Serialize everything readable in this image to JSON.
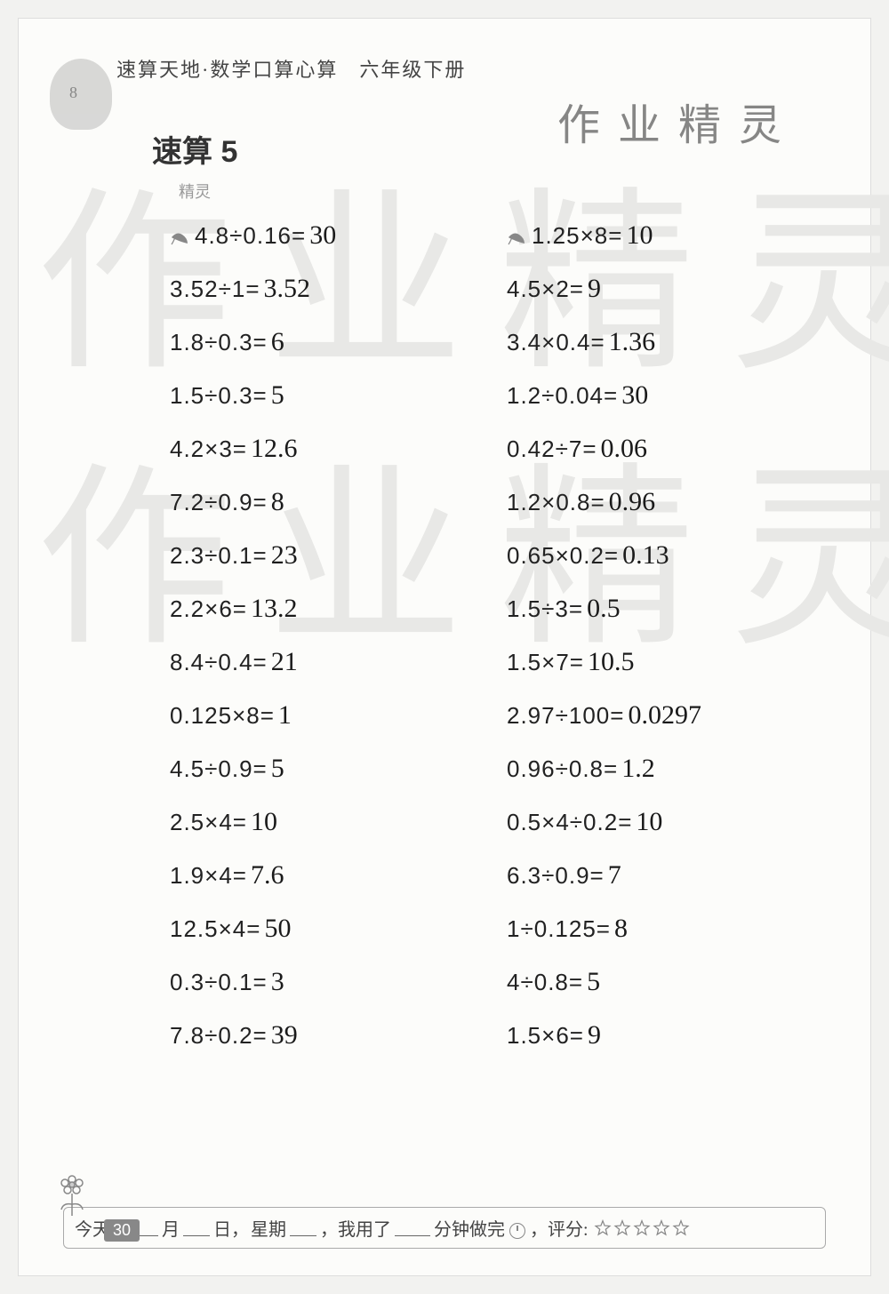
{
  "header": {
    "series_title": "速算天地·数学口算心算　六年级下册"
  },
  "watermark": {
    "handwritten_top": "作业精灵",
    "bg_text": "作业精灵"
  },
  "section": {
    "title": "速算 5",
    "small_tag": "精灵"
  },
  "problems": {
    "left": [
      {
        "printed": "4.8÷0.16=",
        "answer": "30",
        "bullet": true
      },
      {
        "printed": "3.52÷1=",
        "answer": "3.52"
      },
      {
        "printed": "1.8÷0.3=",
        "answer": "6"
      },
      {
        "printed": "1.5÷0.3=",
        "answer": "5"
      },
      {
        "printed": "4.2×3=",
        "answer": "12.6"
      },
      {
        "printed": "7.2÷0.9=",
        "answer": "8"
      },
      {
        "printed": "2.3÷0.1=",
        "answer": "23"
      },
      {
        "printed": "2.2×6=",
        "answer": "13.2"
      },
      {
        "printed": "8.4÷0.4=",
        "answer": "21"
      },
      {
        "printed": "0.125×8=",
        "answer": "1"
      },
      {
        "printed": "4.5÷0.9=",
        "answer": "5"
      },
      {
        "printed": "2.5×4=",
        "answer": "10"
      },
      {
        "printed": "1.9×4=",
        "answer": "7.6"
      },
      {
        "printed": "12.5×4=",
        "answer": "50"
      },
      {
        "printed": "0.3÷0.1=",
        "answer": "3"
      },
      {
        "printed": "7.8÷0.2=",
        "answer": "39"
      }
    ],
    "right": [
      {
        "printed": "1.25×8=",
        "answer": "10",
        "bullet": true
      },
      {
        "printed": "4.5×2=",
        "answer": "9"
      },
      {
        "printed": "3.4×0.4=",
        "answer": "1.36"
      },
      {
        "printed": "1.2÷0.04=",
        "answer": "30"
      },
      {
        "printed": "0.42÷7=",
        "answer": "0.06"
      },
      {
        "printed": "1.2×0.8=",
        "answer": "0.96"
      },
      {
        "printed": "0.65×0.2=",
        "answer": "0.13"
      },
      {
        "printed": "1.5÷3=",
        "answer": "0.5"
      },
      {
        "printed": "1.5×7=",
        "answer": "10.5"
      },
      {
        "printed": "2.97÷100=",
        "answer": "0.0297"
      },
      {
        "printed": "0.96÷0.8=",
        "answer": "1.2"
      },
      {
        "printed": "0.5×4÷0.2=",
        "answer": "10"
      },
      {
        "printed": "6.3÷0.9=",
        "answer": "7"
      },
      {
        "printed": "1÷0.125=",
        "answer": "8"
      },
      {
        "printed": "4÷0.8=",
        "answer": "5"
      },
      {
        "printed": "1.5×6=",
        "answer": "9"
      }
    ]
  },
  "footer": {
    "prefix": "今天是",
    "month_suffix": "月",
    "day_suffix": "日，",
    "weekday_label": "星期",
    "middle": "，我用了",
    "minutes_suffix": "分钟做完",
    "score_label": "，评分:",
    "star_count": 5
  },
  "page_number": "30",
  "colors": {
    "page_bg": "#fcfcfa",
    "text": "#222222",
    "watermark": "#e8e8e6",
    "answer": "#1a1a1a",
    "footer_border": "#aaaaaa"
  },
  "typography": {
    "problem_fontsize_pt": 20,
    "answer_fontsize_pt": 22,
    "title_fontsize_pt": 26,
    "header_fontsize_pt": 16
  }
}
